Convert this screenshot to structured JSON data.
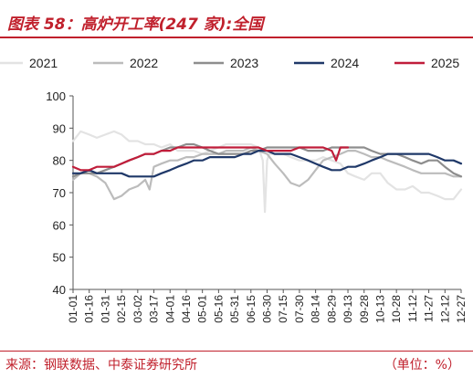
{
  "header": {
    "title": "图表 58：高炉开工率(247 家):全国"
  },
  "footer": {
    "source": "来源：钢联数据、中泰证券研究所",
    "unit": "（单位：%）"
  },
  "chart_data": {
    "type": "line",
    "title": "图表 58：高炉开工率(247 家):全国",
    "xlabel": "",
    "ylabel": "",
    "ylim": [
      40,
      100
    ],
    "yticks": [
      40,
      50,
      60,
      70,
      80,
      90,
      100
    ],
    "x_ticks": [
      "01-01",
      "01-16",
      "01-31",
      "02-15",
      "03-02",
      "03-17",
      "04-01",
      "04-16",
      "05-01",
      "05-16",
      "05-31",
      "06-15",
      "06-30",
      "07-15",
      "07-30",
      "08-14",
      "08-29",
      "09-13",
      "09-28",
      "10-13",
      "10-28",
      "11-12",
      "11-27",
      "12-12",
      "12-27"
    ],
    "grid": false,
    "legend_position": "top",
    "series": [
      {
        "name": "2021",
        "color": "#e3e3e3",
        "x": [
          "01-01",
          "01-08",
          "01-16",
          "01-23",
          "01-31",
          "02-08",
          "02-15",
          "02-22",
          "03-02",
          "03-09",
          "03-17",
          "03-24",
          "04-01",
          "04-08",
          "04-16",
          "04-23",
          "05-01",
          "05-08",
          "05-16",
          "05-23",
          "05-31",
          "06-08",
          "06-15",
          "06-22",
          "06-26",
          "06-28",
          "06-30",
          "07-02",
          "07-07",
          "07-15",
          "07-22",
          "07-30",
          "08-07",
          "08-14",
          "08-21",
          "08-29",
          "09-06",
          "09-13",
          "09-20",
          "09-28",
          "10-05",
          "10-13",
          "10-20",
          "10-28",
          "11-05",
          "11-12",
          "11-20",
          "11-27",
          "12-05",
          "12-12",
          "12-20",
          "12-27"
        ],
        "values": [
          86,
          89,
          88,
          87,
          88,
          89,
          88,
          86,
          86,
          85,
          85,
          84,
          85,
          83,
          83,
          83,
          82,
          83,
          84,
          85,
          85,
          85,
          85,
          84,
          80,
          64,
          80,
          82,
          82,
          82,
          81,
          80,
          80,
          80,
          81,
          80,
          79,
          76,
          75,
          74,
          76,
          76,
          73,
          71,
          71,
          72,
          70,
          70,
          69,
          68,
          68,
          71
        ]
      },
      {
        "name": "2022",
        "color": "#bcbcbc",
        "x": [
          "01-01",
          "01-08",
          "01-16",
          "01-23",
          "01-31",
          "02-08",
          "02-15",
          "02-22",
          "03-02",
          "03-09",
          "03-13",
          "03-17",
          "03-24",
          "04-01",
          "04-08",
          "04-16",
          "04-23",
          "05-01",
          "05-08",
          "05-16",
          "05-23",
          "05-31",
          "06-08",
          "06-15",
          "06-22",
          "06-30",
          "07-07",
          "07-15",
          "07-22",
          "07-30",
          "08-07",
          "08-14",
          "08-21",
          "08-29",
          "09-06",
          "09-13",
          "09-20",
          "09-28",
          "10-05",
          "10-13",
          "10-20",
          "10-28",
          "11-05",
          "11-12",
          "11-20",
          "11-27",
          "12-05",
          "12-12",
          "12-20",
          "12-27"
        ],
        "values": [
          74,
          76,
          76,
          75,
          73,
          68,
          69,
          71,
          72,
          74,
          71,
          78,
          79,
          80,
          80,
          81,
          81,
          82,
          82,
          82,
          83,
          83,
          83,
          84,
          83,
          82,
          79,
          76,
          73,
          72,
          74,
          77,
          80,
          81,
          82,
          83,
          83,
          82,
          81,
          81,
          80,
          79,
          78,
          77,
          76,
          76,
          76,
          76,
          75,
          75
        ]
      },
      {
        "name": "2023",
        "color": "#8e8e8e",
        "x": [
          "01-01",
          "01-08",
          "01-16",
          "01-23",
          "01-31",
          "02-08",
          "02-15",
          "02-22",
          "03-02",
          "03-09",
          "03-17",
          "03-24",
          "04-01",
          "04-08",
          "04-16",
          "04-23",
          "05-01",
          "05-08",
          "05-16",
          "05-23",
          "05-31",
          "06-08",
          "06-15",
          "06-22",
          "06-30",
          "07-07",
          "07-15",
          "07-22",
          "07-30",
          "08-07",
          "08-14",
          "08-21",
          "08-29",
          "09-06",
          "09-13",
          "09-20",
          "09-28",
          "10-05",
          "10-13",
          "10-20",
          "10-28",
          "11-05",
          "11-12",
          "11-20",
          "11-27",
          "12-05",
          "12-12",
          "12-20",
          "12-27"
        ],
        "values": [
          75,
          76,
          76,
          76,
          77,
          78,
          79,
          80,
          81,
          82,
          82,
          83,
          84,
          84,
          85,
          85,
          84,
          83,
          82,
          82,
          82,
          82,
          83,
          83,
          84,
          84,
          84,
          84,
          84,
          83,
          83,
          83,
          84,
          84,
          84,
          84,
          84,
          83,
          82,
          82,
          82,
          81,
          80,
          79,
          80,
          80,
          78,
          76,
          75
        ]
      },
      {
        "name": "2024",
        "color": "#1f3868",
        "x": [
          "01-01",
          "01-08",
          "01-16",
          "01-23",
          "01-31",
          "02-08",
          "02-15",
          "02-22",
          "03-02",
          "03-09",
          "03-17",
          "03-24",
          "04-01",
          "04-08",
          "04-16",
          "04-23",
          "05-01",
          "05-08",
          "05-16",
          "05-23",
          "05-31",
          "06-08",
          "06-15",
          "06-22",
          "06-30",
          "07-07",
          "07-15",
          "07-22",
          "07-30",
          "08-07",
          "08-14",
          "08-21",
          "08-29",
          "09-06",
          "09-13",
          "09-20",
          "09-28",
          "10-05",
          "10-13",
          "10-20",
          "10-28",
          "11-05",
          "11-12",
          "11-20",
          "11-27",
          "12-05",
          "12-12",
          "12-20",
          "12-27"
        ],
        "values": [
          76,
          76,
          77,
          76,
          76,
          76,
          76,
          75,
          75,
          75,
          75,
          76,
          77,
          78,
          79,
          80,
          80,
          81,
          81,
          81,
          81,
          82,
          82,
          83,
          83,
          82,
          82,
          82,
          81,
          80,
          79,
          78,
          77,
          77,
          78,
          78,
          79,
          80,
          81,
          82,
          82,
          82,
          82,
          82,
          82,
          81,
          80,
          80,
          79
        ]
      },
      {
        "name": "2025",
        "color": "#c01d3a",
        "x": [
          "01-01",
          "01-08",
          "01-16",
          "01-23",
          "01-31",
          "02-08",
          "02-15",
          "02-22",
          "03-02",
          "03-09",
          "03-17",
          "03-24",
          "04-01",
          "04-08",
          "04-16",
          "04-23",
          "05-01",
          "05-08",
          "05-16",
          "05-23",
          "05-31",
          "06-08",
          "06-15",
          "06-22",
          "06-30",
          "07-07",
          "07-15",
          "07-22",
          "07-30",
          "08-07",
          "08-14",
          "08-21",
          "08-29",
          "09-02",
          "09-06",
          "09-13"
        ],
        "values": [
          78,
          77,
          77,
          78,
          78,
          78,
          79,
          80,
          81,
          82,
          82,
          83,
          83,
          84,
          84,
          84,
          84,
          84,
          84,
          84,
          84,
          84,
          84,
          84,
          83,
          83,
          83,
          83,
          84,
          84,
          84,
          84,
          83,
          80,
          84,
          84
        ]
      }
    ]
  }
}
